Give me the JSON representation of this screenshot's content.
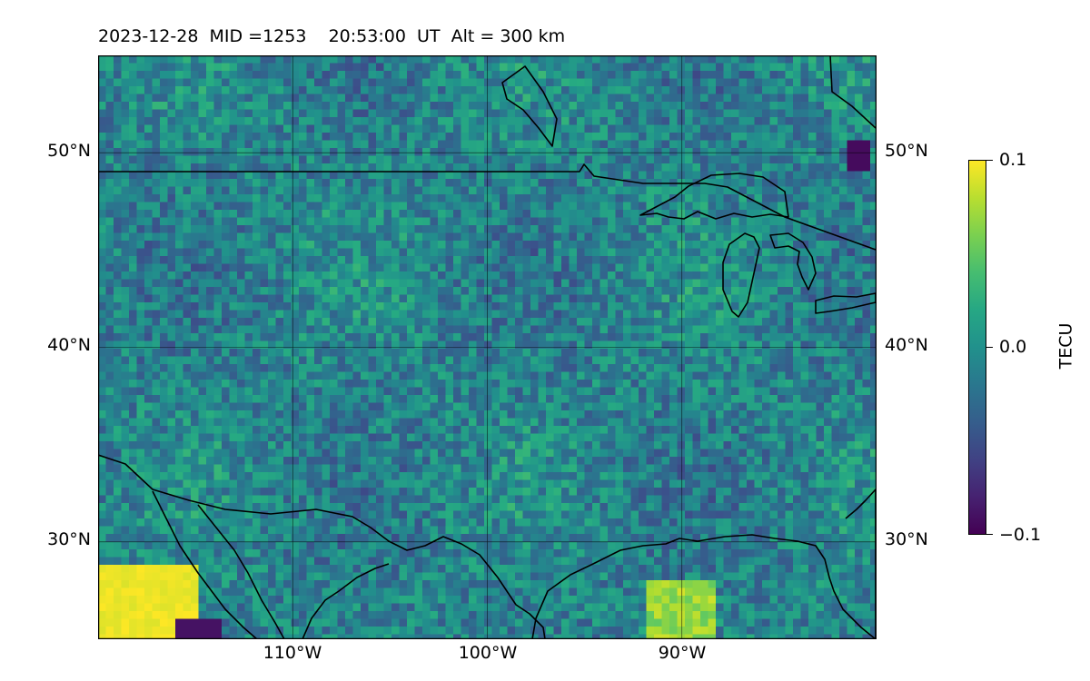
{
  "header": {
    "title": "2023-12-28  MID =1253    20:53:00  UT  Alt = 300 km"
  },
  "map": {
    "lon_range": [
      -120,
      -80
    ],
    "lat_range": [
      25,
      55
    ],
    "lat_ticks_left": [
      "50°N",
      "40°N",
      "30°N"
    ],
    "lat_ticks_right": [
      "50°N",
      "40°N",
      "30°N"
    ],
    "lon_ticks": [
      "110°W",
      "100°W",
      "90°W"
    ],
    "grid": true,
    "features": [
      "coastlines",
      "country-borders",
      "great-lakes"
    ]
  },
  "colorbar": {
    "label": "TECU",
    "colormap": "viridis",
    "range": [
      -0.1,
      0.1
    ],
    "ticks": [
      "0.1",
      "0.0",
      "−0.1"
    ]
  }
}
